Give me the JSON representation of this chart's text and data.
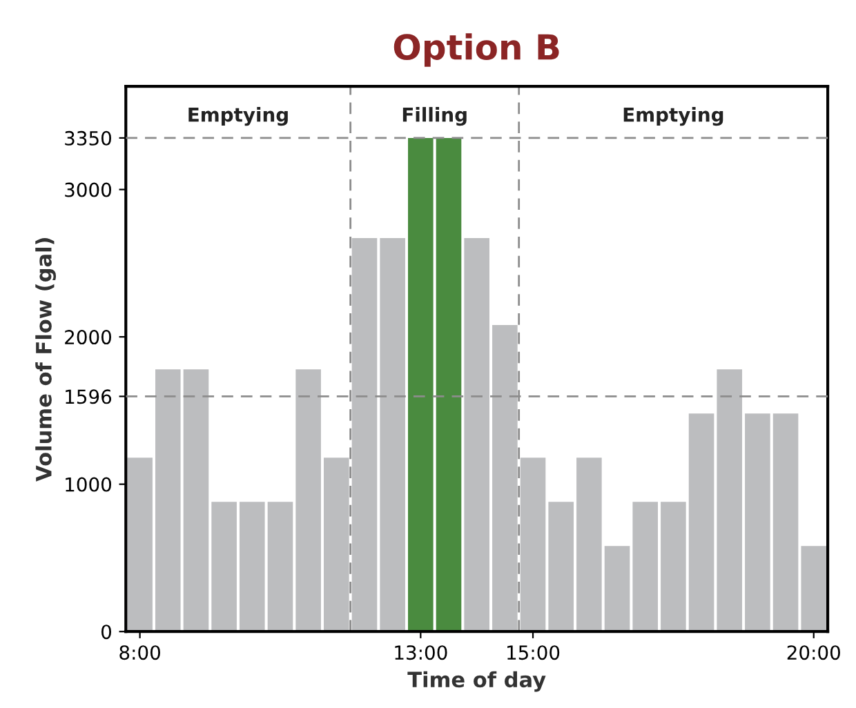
{
  "chart_data": {
    "type": "bar",
    "title": "Option B",
    "xlabel": "Time of day",
    "ylabel": "Volume of Flow (gal)",
    "x": [
      8,
      8.5,
      9,
      9.5,
      10,
      10.5,
      11,
      11.5,
      12,
      12.5,
      13,
      13.5,
      14,
      14.5,
      15,
      15.5,
      16,
      16.5,
      17,
      17.5,
      18,
      18.5,
      19,
      19.5,
      20
    ],
    "values": [
      1180,
      1780,
      1780,
      880,
      880,
      880,
      1780,
      1180,
      2670,
      2670,
      3350,
      3350,
      2670,
      2080,
      1180,
      880,
      1180,
      580,
      880,
      880,
      1480,
      1780,
      1480,
      1480,
      580
    ],
    "colors": [
      "#bcbdbf",
      "#bcbdbf",
      "#bcbdbf",
      "#bcbdbf",
      "#bcbdbf",
      "#bcbdbf",
      "#bcbdbf",
      "#bcbdbf",
      "#bcbdbf",
      "#bcbdbf",
      "#4a8b3f",
      "#4a8b3f",
      "#bcbdbf",
      "#bcbdbf",
      "#bcbdbf",
      "#bcbdbf",
      "#bcbdbf",
      "#bcbdbf",
      "#bcbdbf",
      "#bcbdbf",
      "#bcbdbf",
      "#bcbdbf",
      "#bcbdbf",
      "#bcbdbf",
      "#bcbdbf"
    ],
    "xlim": [
      7.75,
      20.25
    ],
    "xticks": [
      {
        "value": 8,
        "label": "8:00"
      },
      {
        "value": 13,
        "label": "13:00"
      },
      {
        "value": 15,
        "label": "15:00"
      },
      {
        "value": 20,
        "label": "20:00"
      }
    ],
    "ylim": [
      0,
      3700
    ],
    "yticks": [
      0,
      1000,
      1596,
      2000,
      3000,
      3350
    ],
    "ref_lines": [
      {
        "axis": "y",
        "value": 3350,
        "line_style": "dashed"
      },
      {
        "axis": "y",
        "value": 1596,
        "line_style": "dashed"
      },
      {
        "axis": "x",
        "value": 11.75,
        "line_style": "dashed"
      },
      {
        "axis": "x",
        "value": 14.75,
        "line_style": "dashed"
      }
    ],
    "annotations": [
      "Emptying",
      "Filling",
      "Emptying"
    ],
    "grid": false,
    "legend": false
  }
}
